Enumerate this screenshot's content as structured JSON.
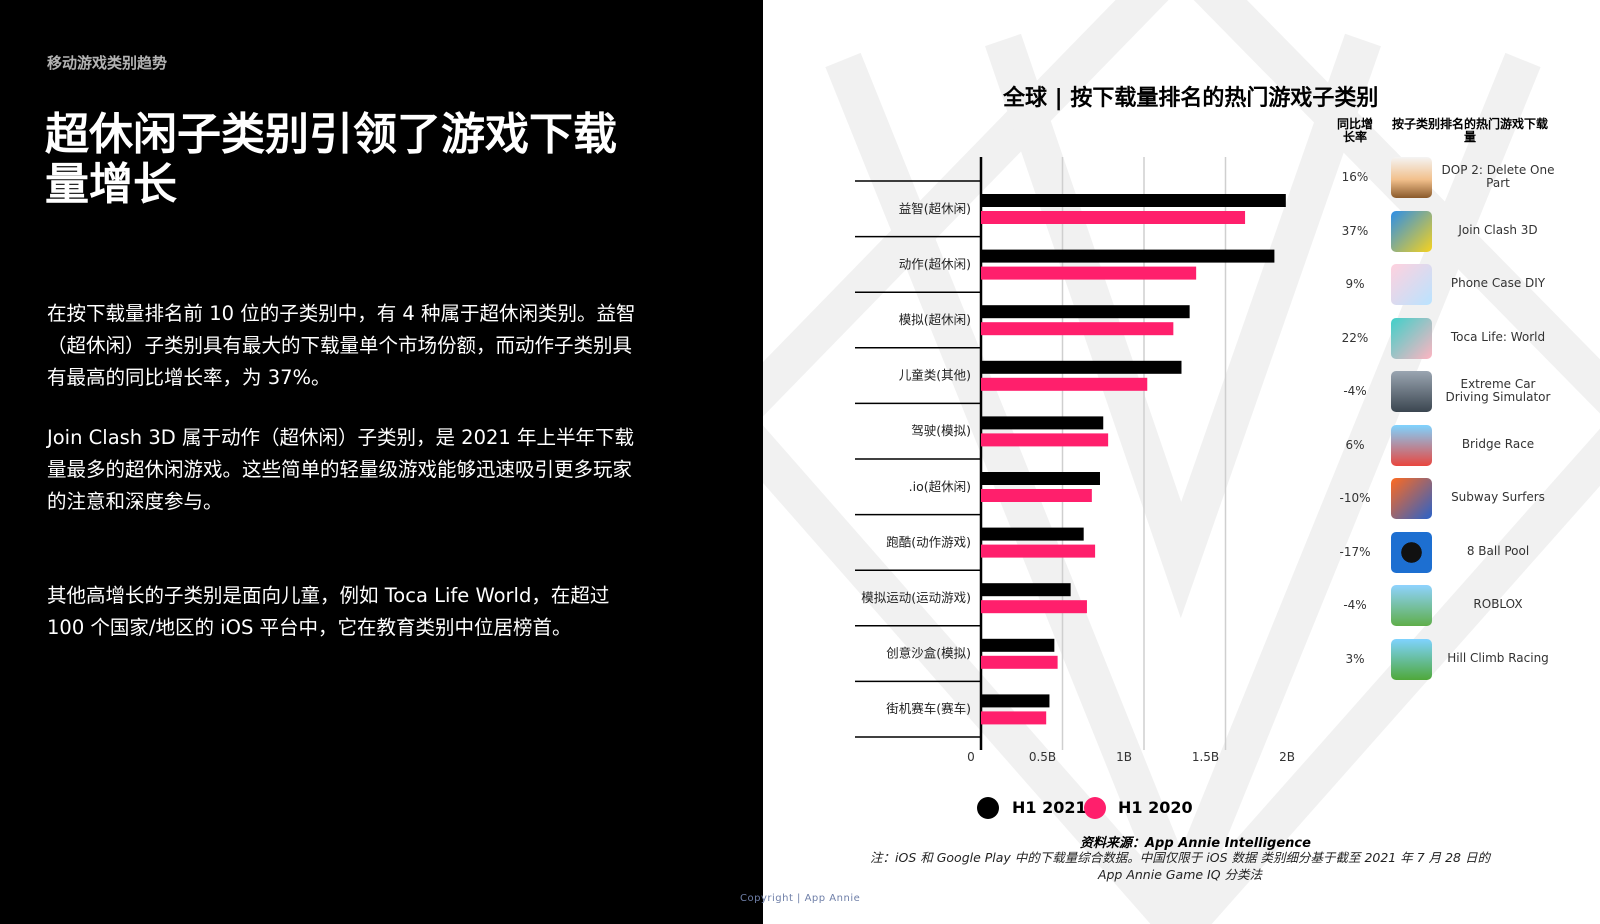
{
  "left": {
    "section_label": "移动游戏类别趋势",
    "headline": "超休闲子类别引领了游戏下载量增长",
    "paragraphs": [
      "在按下载量排名前 10 位的子类别中，有 4 种属于超休闲类别。益智（超休闲）子类别具有最大的下载量单个市场份额，而动作子类别具有最高的同比增长率，为 37%。",
      "Join Clash 3D 属于动作（超休闲）子类别，是 2021 年上半年下载量最多的超休闲游戏。这些简单的轻量级游戏能够迅速吸引更多玩家的注意和深度参与。",
      "其他高增长的子类别是面向儿童，例如 Toca Life World，在超过 100 个国家/地区的 iOS 平台中，它在教育类别中位居榜首。"
    ],
    "copyright": "Copyright | App Annie"
  },
  "table": {
    "growth_header": "同比增长率",
    "games_header": "按子类别排名的热门游戏下载量",
    "rows": [
      {
        "growth": "16%",
        "game": "DOP 2: Delete One Part",
        "icon": "dop2-icon"
      },
      {
        "growth": "37%",
        "game": "Join Clash 3D",
        "icon": "join-clash-icon"
      },
      {
        "growth": "9%",
        "game": "Phone Case DIY",
        "icon": "phone-case-icon"
      },
      {
        "growth": "22%",
        "game": "Toca Life: World",
        "icon": "toca-life-icon"
      },
      {
        "growth": "-4%",
        "game": "Extreme Car Driving Simulator",
        "icon": "extreme-car-icon"
      },
      {
        "growth": "6%",
        "game": "Bridge Race",
        "icon": "bridge-race-icon"
      },
      {
        "growth": "-10%",
        "game": "Subway Surfers",
        "icon": "subway-surfers-icon"
      },
      {
        "growth": "-17%",
        "game": "8 Ball Pool",
        "icon": "8-ball-pool-icon"
      },
      {
        "growth": "-4%",
        "game": "ROBLOX",
        "icon": "roblox-icon"
      },
      {
        "growth": "3%",
        "game": "Hill Climb Racing",
        "icon": "hill-climb-icon"
      }
    ]
  },
  "source": "资料来源：App Annie Intelligence",
  "note_lines": [
    "注：iOS 和 Google Play 中的下载量综合数据。中国仅限于 iOS 数据 类别细分基于截至 2021 年 7 月 28 日的",
    "App Annie Game IQ 分类法"
  ],
  "colors": {
    "h1_2021": "#000000",
    "h1_2020": "#ff1f6c",
    "left_background": "#000000"
  },
  "chart_data": {
    "type": "bar",
    "orientation": "horizontal",
    "title": "全球 | 按下载量排名的热门游戏子类别",
    "categories": [
      "益智(超休闲)",
      "动作(超休闲)",
      "模拟(超休闲)",
      "儿童类(其他)",
      "驾驶(模拟)",
      ".io(超休闲)",
      "跑酷(动作游戏)",
      "模拟运动(运动游戏)",
      "创意沙盒(模拟)",
      "街机赛车(赛车)"
    ],
    "series": [
      {
        "name": "H1 2021",
        "values": [
          1.87,
          1.8,
          1.28,
          1.23,
          0.75,
          0.73,
          0.63,
          0.55,
          0.45,
          0.42
        ]
      },
      {
        "name": "H1 2020",
        "values": [
          1.62,
          1.32,
          1.18,
          1.02,
          0.78,
          0.68,
          0.7,
          0.65,
          0.47,
          0.4
        ]
      }
    ],
    "xticks": [
      "0",
      "0.5B",
      "1B",
      "1.5B",
      "2B"
    ],
    "xtick_values": [
      0,
      0.5,
      1,
      1.5,
      2
    ],
    "xlim": [
      0,
      2
    ],
    "grid": true,
    "legend_position": "bottom"
  }
}
